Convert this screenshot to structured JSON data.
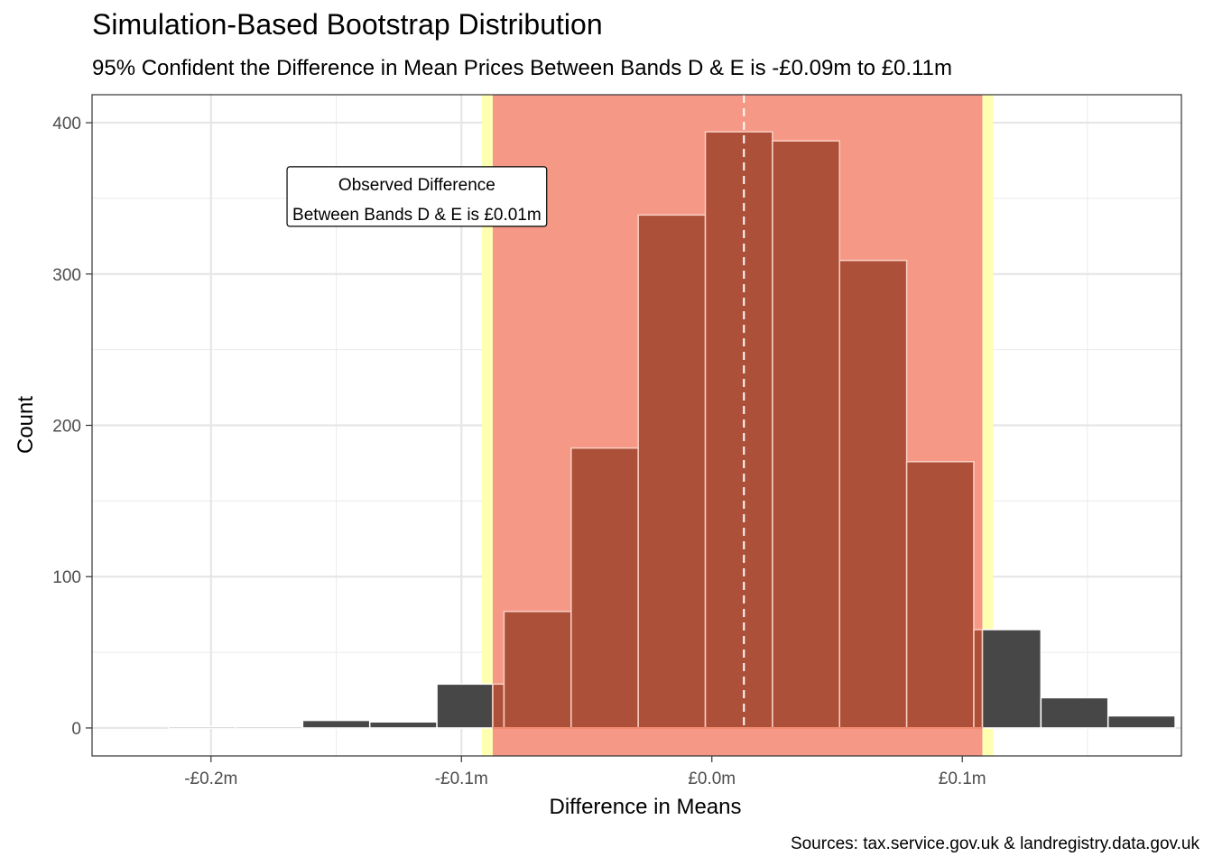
{
  "chart_data": {
    "type": "bar",
    "title": "Simulation-Based Bootstrap Distribution",
    "subtitle": "95% Confident the Difference in Mean Prices Between Bands D & E is -£0.09m to £0.11m",
    "xlabel": "Difference in Means",
    "ylabel": "Count",
    "caption": "Sources: tax.service.gov.uk & landregistry.data.gov.uk",
    "xlim": [
      -0.2475,
      0.1875
    ],
    "ylim": [
      -18.5,
      418.5
    ],
    "x_ticks": [
      -0.2,
      -0.1,
      0.0,
      0.1
    ],
    "x_tick_labels": [
      "-£0.2m",
      "-£0.1m",
      "£0.0m",
      "£0.1m"
    ],
    "y_ticks": [
      0,
      100,
      200,
      300,
      400
    ],
    "y_tick_labels": [
      "0",
      "100",
      "200",
      "300",
      "400"
    ],
    "grid": true,
    "bin_width": 0.0268,
    "bins": [
      {
        "x": -0.2036,
        "count": 1
      },
      {
        "x": -0.1768,
        "count": 1
      },
      {
        "x": -0.15,
        "count": 5
      },
      {
        "x": -0.1232,
        "count": 4
      },
      {
        "x": -0.0964,
        "count": 29
      },
      {
        "x": -0.0696,
        "count": 77
      },
      {
        "x": -0.0428,
        "count": 185
      },
      {
        "x": -0.016,
        "count": 339
      },
      {
        "x": 0.0108,
        "count": 394
      },
      {
        "x": 0.0376,
        "count": 388
      },
      {
        "x": 0.0644,
        "count": 309
      },
      {
        "x": 0.0912,
        "count": 176
      },
      {
        "x": 0.118,
        "count": 65
      },
      {
        "x": 0.1448,
        "count": 20
      },
      {
        "x": 0.1716,
        "count": 8
      }
    ],
    "ci_lower": -0.0875,
    "ci_upper": 0.108,
    "observed_difference": 0.0128,
    "annotation": {
      "line1": "Observed Difference",
      "line2": "Between Bands D & E is £0.01m",
      "x": -0.1178,
      "y": 350
    },
    "colors": {
      "bar_outside": "#474747",
      "bar_inside": "#ad5039",
      "ci_fill": "#f59886",
      "ci_edge": "#ffffb2",
      "observed_line": "#ffffff"
    }
  }
}
